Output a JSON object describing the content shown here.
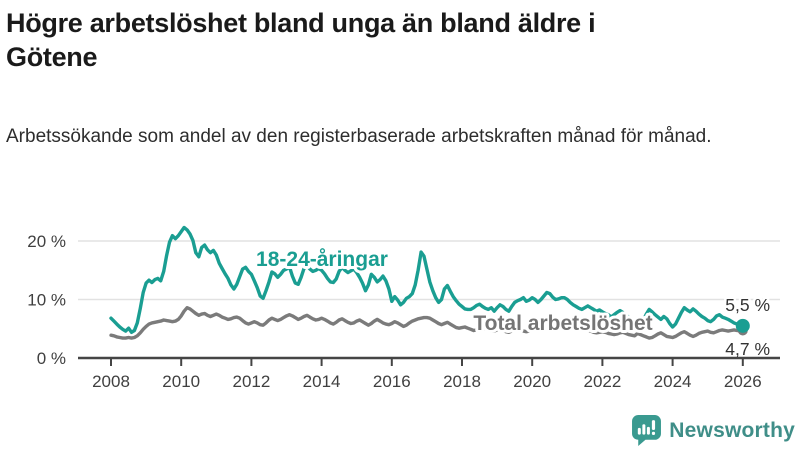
{
  "header": {
    "title": "Högre arbetslöshet bland unga än bland äldre i Götene",
    "title_lines": [
      "Högre arbetslöshet bland unga än bland äldre i",
      "Götene"
    ],
    "subtitle": "Arbetssökande som andel av den registerbaserade arbetskraften månad för månad."
  },
  "chart_data": {
    "type": "line",
    "frequency": "monthly",
    "x_start_year": 2008,
    "x_end_year": 2026,
    "unit": "%",
    "grid": "horizontal",
    "legend_position": "inline-labels",
    "ylim": [
      0,
      23
    ],
    "x_ticks": [
      2008,
      2010,
      2012,
      2014,
      2016,
      2018,
      2020,
      2022,
      2024,
      2026
    ],
    "y_ticks": [
      {
        "label": "0 %",
        "value": 0
      },
      {
        "label": "10 %",
        "value": 10
      },
      {
        "label": "20 %",
        "value": 20
      }
    ],
    "series": [
      {
        "name": "Total arbetslöshet",
        "color": "#7b7b7b",
        "label_color": "#757575",
        "end_label": "4,7 %",
        "last_value": 4.7,
        "values": [
          3.9,
          3.8,
          3.6,
          3.5,
          3.4,
          3.4,
          3.5,
          3.4,
          3.5,
          3.8,
          4.3,
          4.9,
          5.4,
          5.8,
          6.0,
          6.1,
          6.2,
          6.3,
          6.5,
          6.4,
          6.3,
          6.2,
          6.3,
          6.6,
          7.2,
          8.0,
          8.6,
          8.4,
          8.0,
          7.6,
          7.3,
          7.5,
          7.6,
          7.3,
          7.1,
          7.3,
          7.5,
          7.3,
          7.0,
          6.8,
          6.6,
          6.7,
          6.9,
          7.0,
          6.8,
          6.4,
          6.0,
          5.8,
          6.0,
          6.2,
          6.0,
          5.7,
          5.6,
          6.0,
          6.5,
          6.8,
          6.6,
          6.4,
          6.6,
          6.9,
          7.2,
          7.4,
          7.2,
          6.9,
          6.6,
          6.8,
          7.1,
          7.3,
          7.0,
          6.7,
          6.5,
          6.6,
          6.8,
          6.6,
          6.3,
          6.0,
          5.8,
          6.1,
          6.5,
          6.7,
          6.4,
          6.1,
          5.9,
          6.0,
          6.3,
          6.5,
          6.2,
          5.9,
          5.6,
          5.9,
          6.3,
          6.6,
          6.3,
          6.0,
          5.8,
          5.7,
          5.9,
          6.2,
          6.0,
          5.7,
          5.4,
          5.6,
          6.0,
          6.3,
          6.5,
          6.7,
          6.8,
          6.9,
          6.9,
          6.8,
          6.5,
          6.2,
          5.9,
          5.7,
          5.9,
          6.1,
          5.8,
          5.5,
          5.2,
          5.1,
          5.2,
          5.3,
          5.1,
          4.9,
          4.7,
          4.8,
          5.0,
          5.2,
          5.0,
          4.8,
          4.6,
          4.6,
          4.8,
          4.9,
          4.7,
          4.5,
          4.4,
          4.6,
          4.9,
          5.0,
          4.8,
          4.6,
          4.5,
          4.6,
          4.9,
          5.1,
          5.6,
          6.1,
          6.3,
          6.4,
          6.2,
          6.0,
          5.8,
          5.7,
          5.6,
          5.7,
          5.8,
          5.7,
          5.5,
          5.3,
          5.1,
          4.9,
          4.8,
          4.7,
          4.6,
          4.4,
          4.3,
          4.4,
          4.5,
          4.4,
          4.2,
          4.1,
          4.0,
          4.1,
          4.3,
          4.4,
          4.2,
          4.0,
          3.9,
          3.8,
          4.2,
          4.0,
          3.8,
          3.6,
          3.4,
          3.5,
          3.8,
          4.1,
          4.3,
          4.0,
          3.7,
          3.6,
          3.5,
          3.7,
          4.0,
          4.3,
          4.5,
          4.2,
          3.9,
          3.7,
          3.9,
          4.2,
          4.4,
          4.5,
          4.6,
          4.4,
          4.3,
          4.5,
          4.7,
          4.8,
          4.7,
          4.6,
          4.7,
          4.8,
          4.7,
          4.7,
          4.7
        ]
      },
      {
        "name": "18-24-åringar",
        "color": "#1a9e92",
        "label_color": "#1a9e92",
        "end_label": "5,5 %",
        "last_value": 5.5,
        "values": [
          6.8,
          6.3,
          5.8,
          5.3,
          4.9,
          4.6,
          5.1,
          4.4,
          4.7,
          6.0,
          8.5,
          11.2,
          12.8,
          13.3,
          12.9,
          13.4,
          13.6,
          13.2,
          14.8,
          17.5,
          19.8,
          20.9,
          20.4,
          20.9,
          21.6,
          22.3,
          21.9,
          21.2,
          20.1,
          18.0,
          17.3,
          18.9,
          19.3,
          18.5,
          18.0,
          18.4,
          17.6,
          16.2,
          15.3,
          14.4,
          13.6,
          12.5,
          11.8,
          12.6,
          13.9,
          15.2,
          15.5,
          14.8,
          14.3,
          13.2,
          12.0,
          10.6,
          10.2,
          11.5,
          13.0,
          14.7,
          14.4,
          13.8,
          14.3,
          15.0,
          15.2,
          15.6,
          14.0,
          12.8,
          12.6,
          13.8,
          15.3,
          15.8,
          15.2,
          14.8,
          15.0,
          15.3,
          15.0,
          14.4,
          13.6,
          13.0,
          12.9,
          13.5,
          14.8,
          15.5,
          15.0,
          14.6,
          14.9,
          15.2,
          14.6,
          13.8,
          12.8,
          11.5,
          12.5,
          14.3,
          13.8,
          13.0,
          13.4,
          14.0,
          13.2,
          11.8,
          9.7,
          10.5,
          9.9,
          9.1,
          9.5,
          10.2,
          10.5,
          11.0,
          12.5,
          15.0,
          18.1,
          17.4,
          15.2,
          13.0,
          11.5,
          10.3,
          9.5,
          10.0,
          11.8,
          12.4,
          11.4,
          10.5,
          9.8,
          9.2,
          8.8,
          8.4,
          8.3,
          8.3,
          8.6,
          9.0,
          9.2,
          8.8,
          8.5,
          8.3,
          8.6,
          8.0,
          8.6,
          9.1,
          8.8,
          8.3,
          8.0,
          8.8,
          9.5,
          9.8,
          10.0,
          10.3,
          9.7,
          9.9,
          10.3,
          10.0,
          9.5,
          10.0,
          10.6,
          11.2,
          11.0,
          10.4,
          10.0,
          10.1,
          10.3,
          10.3,
          10.0,
          9.5,
          9.1,
          8.8,
          8.5,
          8.3,
          8.6,
          8.9,
          8.6,
          8.3,
          8.0,
          8.2,
          7.9,
          7.6,
          7.4,
          7.0,
          7.4,
          7.8,
          8.1,
          7.8,
          7.4,
          7.0,
          6.5,
          5.8,
          5.2,
          5.6,
          6.5,
          7.5,
          8.3,
          7.9,
          7.4,
          7.0,
          6.6,
          7.1,
          6.7,
          5.9,
          5.3,
          5.8,
          6.8,
          7.8,
          8.6,
          8.2,
          7.9,
          8.4,
          8.0,
          7.5,
          7.1,
          6.8,
          6.4,
          6.2,
          6.6,
          7.2,
          7.4,
          7.0,
          6.8,
          6.6,
          6.3,
          6.0,
          5.8,
          5.6,
          5.5
        ]
      }
    ]
  },
  "branding": {
    "logo_text": "Newsworthy",
    "logo_color": "#3a9a90"
  }
}
